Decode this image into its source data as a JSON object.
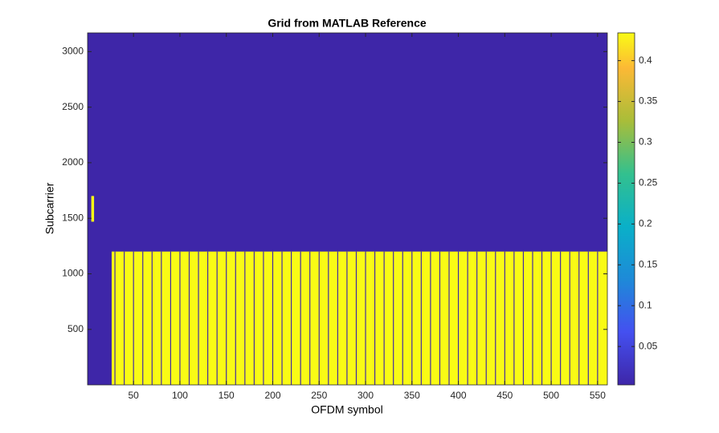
{
  "chart_data": {
    "type": "heatmap",
    "title": "Grid from MATLAB Reference",
    "xlabel": "OFDM symbol",
    "ylabel": "Subcarrier",
    "xlim": [
      0.5,
      560.5
    ],
    "ylim": [
      0.5,
      3168.5
    ],
    "xticks": [
      50,
      100,
      150,
      200,
      250,
      300,
      350,
      400,
      450,
      500,
      550
    ],
    "yticks": [
      500,
      1000,
      1500,
      2000,
      2500,
      3000
    ],
    "colormap": "parula",
    "clim": [
      0.003,
      0.434
    ],
    "cticks": [
      0.05,
      0.1,
      0.15,
      0.2,
      0.25,
      0.3,
      0.35,
      0.4
    ],
    "background_value": 0.003,
    "blocks": [
      {
        "x": [
          27,
          560
        ],
        "y": [
          1,
          1200
        ],
        "value": 0.434
      },
      {
        "x": [
          5,
          7
        ],
        "y": [
          1470,
          1700
        ],
        "value": 0.434
      }
    ],
    "gap_value": 0.003,
    "gap_columns": [
      30,
      40,
      50,
      60,
      70,
      80,
      90,
      100,
      110,
      120,
      130,
      140,
      150,
      160,
      170,
      180,
      190,
      200,
      210,
      220,
      230,
      240,
      250,
      260,
      270,
      280,
      290,
      300,
      310,
      320,
      330,
      340,
      350,
      360,
      370,
      380,
      390,
      400,
      410,
      420,
      430,
      440,
      450,
      460,
      470,
      480,
      490,
      500,
      510,
      520,
      530,
      540,
      550
    ]
  }
}
